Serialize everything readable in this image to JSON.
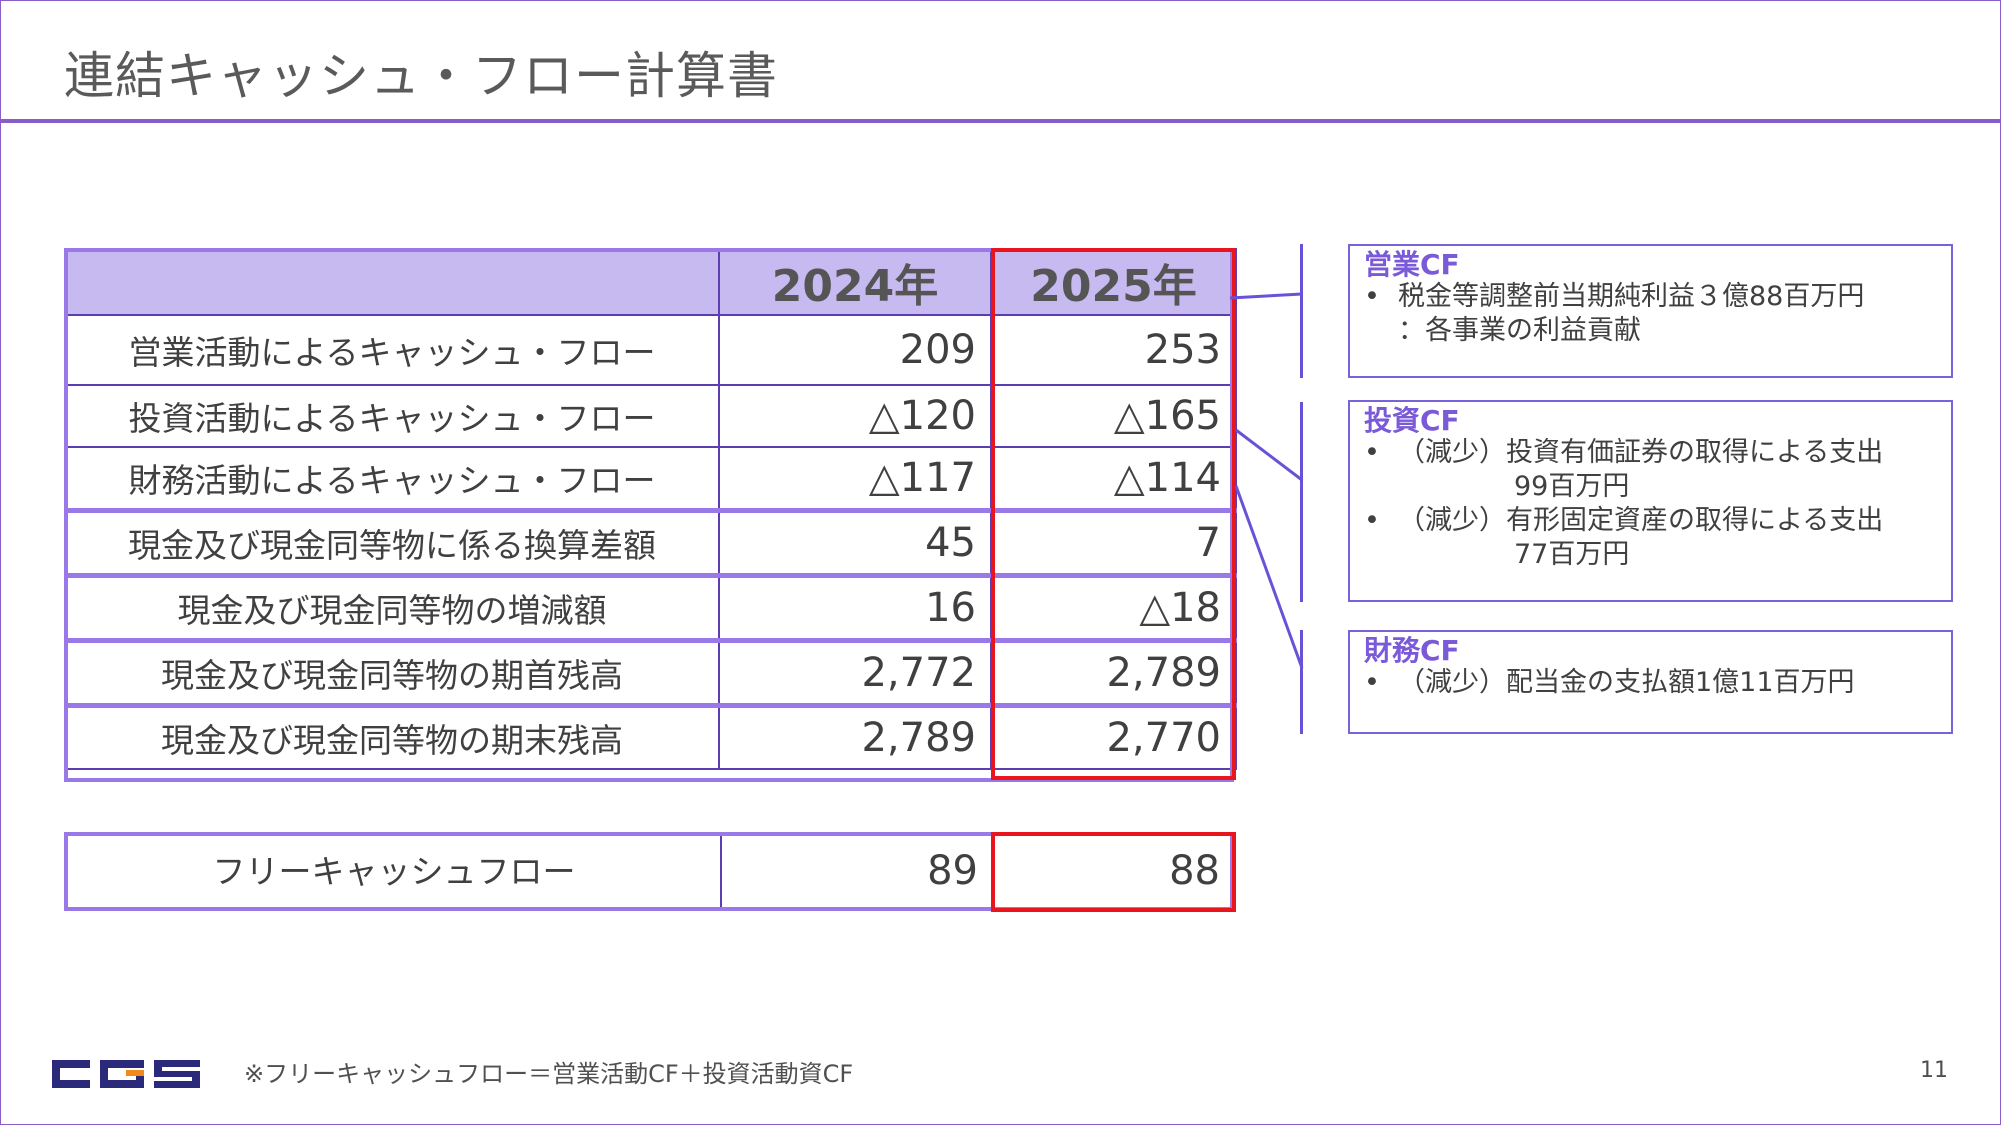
{
  "title": "連結キャッシュ・フロー計算書",
  "table": {
    "headers": [
      "",
      "2024年",
      "2025年"
    ],
    "rows": [
      {
        "label": "営業活動によるキャッシュ・フロー",
        "y2024": "209",
        "y2025": "253"
      },
      {
        "label": "投資活動によるキャッシュ・フロー",
        "y2024": "△120",
        "y2025": "△165"
      },
      {
        "label": "財務活動によるキャッシュ・フロー",
        "y2024": "△117",
        "y2025": "△114"
      },
      {
        "label": "現金及び現金同等物に係る換算差額",
        "y2024": "45",
        "y2025": "7"
      },
      {
        "label": "現金及び現金同等物の増減額",
        "y2024": "16",
        "y2025": "△18"
      },
      {
        "label": "現金及び現金同等物の期首残高",
        "y2024": "2,772",
        "y2025": "2,789"
      },
      {
        "label": "現金及び現金同等物の期末残高",
        "y2024": "2,789",
        "y2025": "2,770"
      }
    ]
  },
  "free_cf": {
    "label": "フリーキャッシュフロー",
    "y2024": "89",
    "y2025": "88"
  },
  "notes": [
    {
      "heading": "営業CF",
      "items": [
        {
          "bullet": "•",
          "text": "税金等調整前当期純利益３億88百万円",
          "cont": "：各事業の利益貢献"
        }
      ]
    },
    {
      "heading": "投資CF",
      "items": [
        {
          "bullet": "•",
          "text": "（減少）投資有価証券の取得による支出",
          "cont": "99百万円"
        },
        {
          "bullet": "•",
          "text": "（減少）有形固定資産の取得による支出",
          "cont": "77百万円"
        }
      ]
    },
    {
      "heading": "財務CF",
      "items": [
        {
          "bullet": "•",
          "text": "（減少）配当金の支払額1億11百万円",
          "cont": ""
        }
      ]
    }
  ],
  "footnote": "※フリーキャッシュフロー＝営業活動CF＋投資活動資CF",
  "page_number": "11",
  "logo_text": "CGS",
  "colors": {
    "accent": "#8a5cc7",
    "header_fill": "#c6baf0",
    "highlight": "#e8141e",
    "logo_navy": "#2b2a7a",
    "logo_orange": "#f08a1c"
  }
}
